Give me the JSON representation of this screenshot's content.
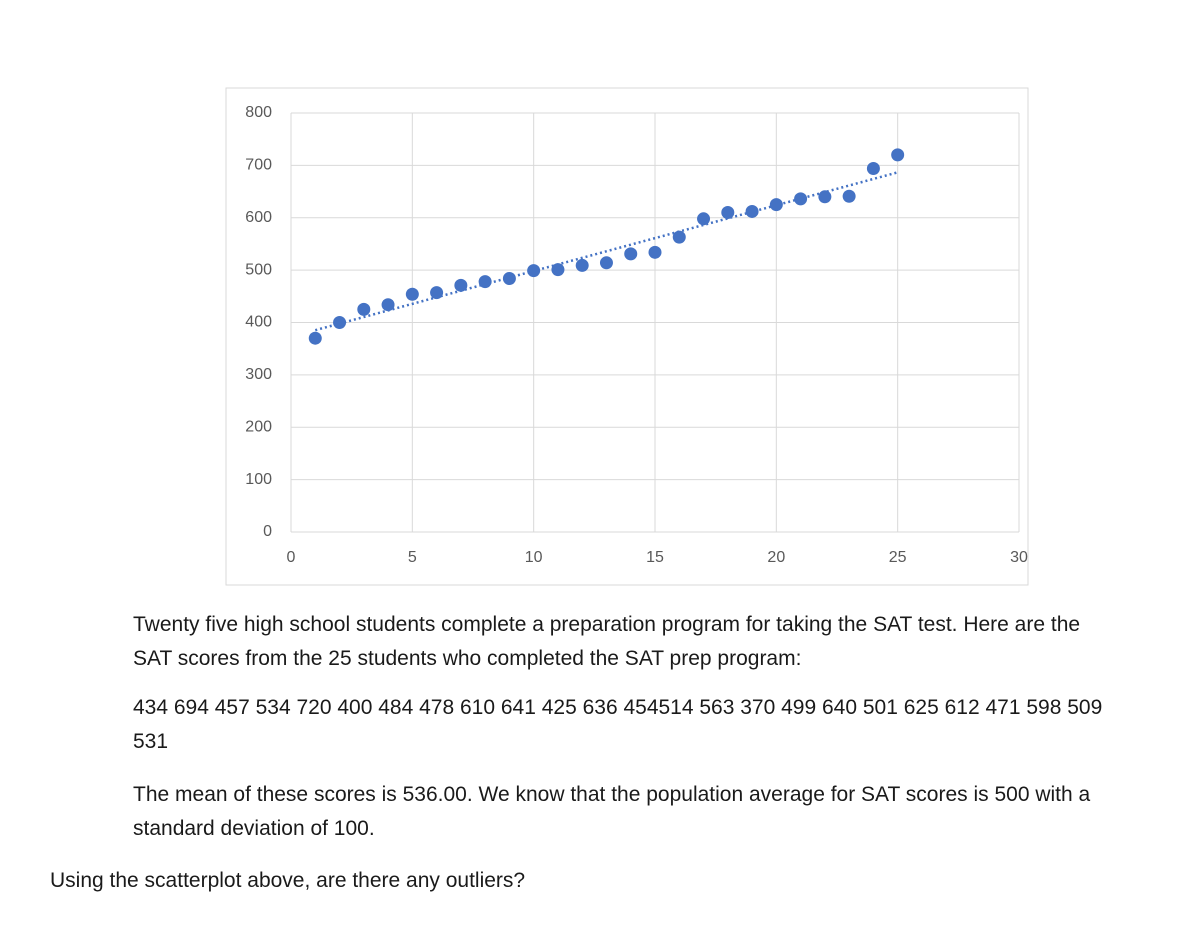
{
  "chart_data": {
    "type": "scatter",
    "x": [
      1,
      2,
      3,
      4,
      5,
      6,
      7,
      8,
      9,
      10,
      11,
      12,
      13,
      14,
      15,
      16,
      17,
      18,
      19,
      20,
      21,
      22,
      23,
      24,
      25
    ],
    "series": [
      {
        "color": "#4472c4",
        "values": [
          370,
          400,
          425,
          434,
          454,
          457,
          471,
          478,
          484,
          499,
          501,
          509,
          514,
          531,
          534,
          563,
          598,
          610,
          612,
          625,
          636,
          640,
          641,
          694,
          720
        ]
      }
    ],
    "xlim": [
      0,
      30
    ],
    "xticks": [
      0,
      5,
      10,
      15,
      20,
      25,
      30
    ],
    "ylim": [
      0,
      800
    ],
    "yticks": [
      0,
      100,
      200,
      300,
      400,
      500,
      600,
      700,
      800
    ],
    "grid": true,
    "trendline": "linear"
  },
  "document": {
    "paragraphs": [
      "Twenty five high school students complete a preparation program for taking the SAT test. Here are the SAT scores from the 25 students who completed the SAT prep program:",
      "434 694 457 534 720 400 484 478 610 641 425 636 454514 563 370 499 640 501 625 612 471 598 509 531",
      "The mean of these scores is 536.00. We know that the population average for SAT scores is 500 with a standard deviation of 100.",
      "Using the scatterplot above, are there any outliers?"
    ]
  }
}
